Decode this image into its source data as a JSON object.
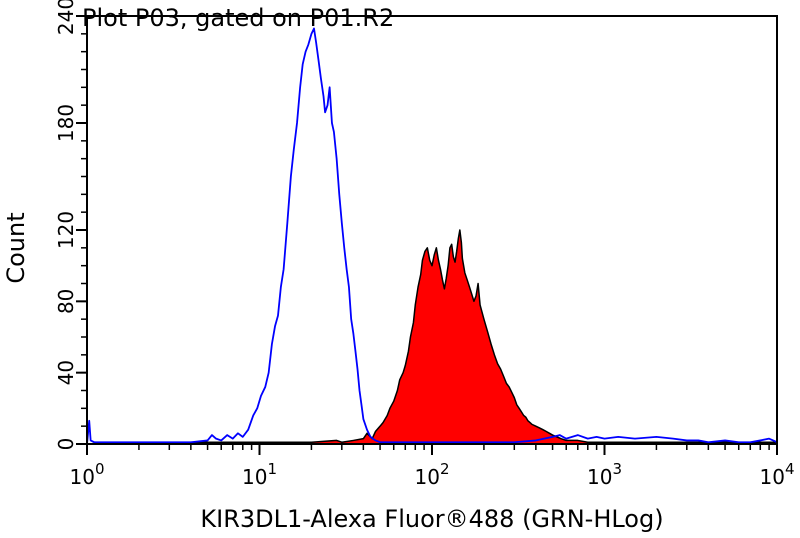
{
  "chart_data": {
    "type": "line",
    "title": "Plot P03, gated on P01.R2",
    "xlabel": "KIR3DL1-Alexa Fluor®488 (GRN-HLog)",
    "ylabel": "Count",
    "x_scale": "log",
    "xlim": [
      1,
      10000
    ],
    "ylim": [
      0,
      240
    ],
    "x_ticks": [
      {
        "value": 1,
        "base": "10",
        "exp": "0"
      },
      {
        "value": 10,
        "base": "10",
        "exp": "1"
      },
      {
        "value": 100,
        "base": "10",
        "exp": "2"
      },
      {
        "value": 1000,
        "base": "10",
        "exp": "3"
      },
      {
        "value": 10000,
        "base": "10",
        "exp": "4"
      }
    ],
    "y_ticks": [
      {
        "value": 0,
        "label": "0"
      },
      {
        "value": 40,
        "label": "40"
      },
      {
        "value": 80,
        "label": "80"
      },
      {
        "value": 120,
        "label": "120"
      },
      {
        "value": 180,
        "label": "180"
      },
      {
        "value": 240,
        "label": "240"
      }
    ],
    "grid": false,
    "series": [
      {
        "kind": "outline",
        "color": "#0000ff",
        "points": [
          [
            1.0,
            0
          ],
          [
            1.03,
            13
          ],
          [
            1.05,
            2
          ],
          [
            1.1,
            1
          ],
          [
            1.5,
            1
          ],
          [
            2,
            1
          ],
          [
            3,
            1
          ],
          [
            4,
            1
          ],
          [
            5,
            2
          ],
          [
            5.3,
            5
          ],
          [
            5.6,
            3
          ],
          [
            6,
            2
          ],
          [
            6.5,
            5
          ],
          [
            7,
            3
          ],
          [
            7.5,
            6
          ],
          [
            8,
            4
          ],
          [
            8.6,
            8
          ],
          [
            9.2,
            16
          ],
          [
            9.7,
            20
          ],
          [
            10.2,
            27
          ],
          [
            10.8,
            32
          ],
          [
            11.3,
            40
          ],
          [
            11.8,
            56
          ],
          [
            12.3,
            66
          ],
          [
            12.8,
            72
          ],
          [
            13.3,
            88
          ],
          [
            13.8,
            98
          ],
          [
            14.5,
            124
          ],
          [
            15.2,
            150
          ],
          [
            15.8,
            165
          ],
          [
            16.5,
            180
          ],
          [
            17.2,
            200
          ],
          [
            17.8,
            213
          ],
          [
            18.5,
            220
          ],
          [
            19.2,
            224
          ],
          [
            20,
            230
          ],
          [
            20.7,
            233
          ],
          [
            21.3,
            225
          ],
          [
            22,
            215
          ],
          [
            22.7,
            205
          ],
          [
            23.5,
            195
          ],
          [
            24,
            186
          ],
          [
            24.8,
            190
          ],
          [
            25.5,
            200
          ],
          [
            26.3,
            180
          ],
          [
            27,
            175
          ],
          [
            28,
            160
          ],
          [
            29,
            140
          ],
          [
            30,
            124
          ],
          [
            31,
            110
          ],
          [
            32,
            98
          ],
          [
            33,
            88
          ],
          [
            34,
            70
          ],
          [
            35,
            62
          ],
          [
            36,
            52
          ],
          [
            37,
            42
          ],
          [
            38,
            30
          ],
          [
            39,
            22
          ],
          [
            40,
            14
          ],
          [
            42,
            8
          ],
          [
            44,
            4
          ],
          [
            47,
            2
          ],
          [
            50,
            1
          ],
          [
            60,
            1
          ],
          [
            100,
            1
          ],
          [
            200,
            1
          ],
          [
            300,
            1
          ],
          [
            400,
            2
          ],
          [
            500,
            4
          ],
          [
            550,
            5
          ],
          [
            600,
            3
          ],
          [
            700,
            5
          ],
          [
            800,
            3
          ],
          [
            900,
            4
          ],
          [
            1000,
            3
          ],
          [
            1200,
            4
          ],
          [
            1500,
            3
          ],
          [
            2000,
            4
          ],
          [
            2500,
            3
          ],
          [
            3000,
            2
          ],
          [
            3500,
            2
          ],
          [
            4000,
            1
          ],
          [
            5000,
            2
          ],
          [
            6000,
            1
          ],
          [
            7000,
            1
          ],
          [
            8000,
            2
          ],
          [
            9000,
            3
          ],
          [
            9500,
            2
          ],
          [
            10000,
            1
          ]
        ]
      },
      {
        "kind": "filled",
        "color": "#ff0000",
        "stroke": "#000000",
        "points": [
          [
            1.0,
            0
          ],
          [
            1.5,
            1
          ],
          [
            2,
            1
          ],
          [
            5,
            1
          ],
          [
            10,
            1
          ],
          [
            20,
            1
          ],
          [
            28,
            2
          ],
          [
            30,
            1
          ],
          [
            35,
            2
          ],
          [
            40,
            3
          ],
          [
            42,
            6
          ],
          [
            45,
            3
          ],
          [
            47,
            7
          ],
          [
            50,
            10
          ],
          [
            52,
            12
          ],
          [
            55,
            16
          ],
          [
            57,
            20
          ],
          [
            60,
            24
          ],
          [
            63,
            30
          ],
          [
            65,
            36
          ],
          [
            68,
            40
          ],
          [
            70,
            44
          ],
          [
            73,
            52
          ],
          [
            75,
            60
          ],
          [
            78,
            68
          ],
          [
            80,
            78
          ],
          [
            83,
            88
          ],
          [
            86,
            95
          ],
          [
            88,
            103
          ],
          [
            91,
            108
          ],
          [
            94,
            110
          ],
          [
            97,
            103
          ],
          [
            100,
            100
          ],
          [
            103,
            106
          ],
          [
            106,
            110
          ],
          [
            109,
            103
          ],
          [
            112,
            98
          ],
          [
            115,
            92
          ],
          [
            118,
            87
          ],
          [
            121,
            93
          ],
          [
            124,
            100
          ],
          [
            127,
            110
          ],
          [
            130,
            112
          ],
          [
            133,
            105
          ],
          [
            136,
            102
          ],
          [
            139,
            108
          ],
          [
            142,
            115
          ],
          [
            145,
            120
          ],
          [
            148,
            113
          ],
          [
            150,
            104
          ],
          [
            155,
            96
          ],
          [
            160,
            92
          ],
          [
            165,
            88
          ],
          [
            170,
            84
          ],
          [
            175,
            80
          ],
          [
            180,
            83
          ],
          [
            185,
            90
          ],
          [
            190,
            78
          ],
          [
            200,
            70
          ],
          [
            210,
            63
          ],
          [
            220,
            56
          ],
          [
            230,
            50
          ],
          [
            240,
            45
          ],
          [
            250,
            42
          ],
          [
            260,
            38
          ],
          [
            270,
            34
          ],
          [
            280,
            32
          ],
          [
            290,
            29
          ],
          [
            300,
            26
          ],
          [
            310,
            22
          ],
          [
            320,
            20
          ],
          [
            330,
            18
          ],
          [
            340,
            16
          ],
          [
            350,
            15
          ],
          [
            360,
            13
          ],
          [
            370,
            12
          ],
          [
            380,
            11
          ],
          [
            400,
            10
          ],
          [
            420,
            9
          ],
          [
            440,
            8
          ],
          [
            460,
            7
          ],
          [
            480,
            6
          ],
          [
            500,
            5
          ],
          [
            530,
            4
          ],
          [
            560,
            3
          ],
          [
            600,
            2
          ],
          [
            700,
            2
          ],
          [
            800,
            1
          ],
          [
            1000,
            1
          ],
          [
            2000,
            1
          ],
          [
            5000,
            1
          ],
          [
            10000,
            1
          ]
        ]
      }
    ]
  }
}
